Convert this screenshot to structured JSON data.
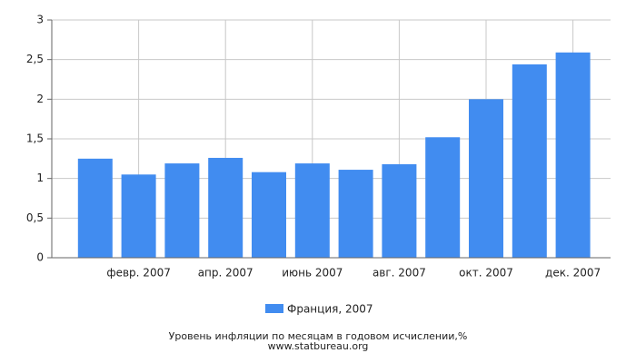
{
  "chart_data": {
    "type": "bar",
    "categories": [
      null,
      "февр. 2007",
      null,
      "апр. 2007",
      null,
      "июнь 2007",
      null,
      "авг. 2007",
      null,
      "окт. 2007",
      null,
      "дек. 2007"
    ],
    "series": [
      {
        "name": "Франция, 2007",
        "color": "#418cf0",
        "values": [
          1.25,
          1.05,
          1.19,
          1.26,
          1.08,
          1.19,
          1.11,
          1.18,
          1.52,
          2.0,
          2.44,
          2.59
        ]
      }
    ],
    "ylim": [
      0,
      3
    ],
    "yticks": [
      0,
      {
        "value": 0.5,
        "label": "0,5"
      },
      1,
      {
        "value": 1.5,
        "label": "1,5"
      },
      2,
      {
        "value": 2.5,
        "label": "2,5"
      },
      3
    ],
    "grid": true,
    "footer": [
      "Уровень инфляции по месяцам в годовом исчислении,%",
      "www.statbureau.org"
    ]
  }
}
